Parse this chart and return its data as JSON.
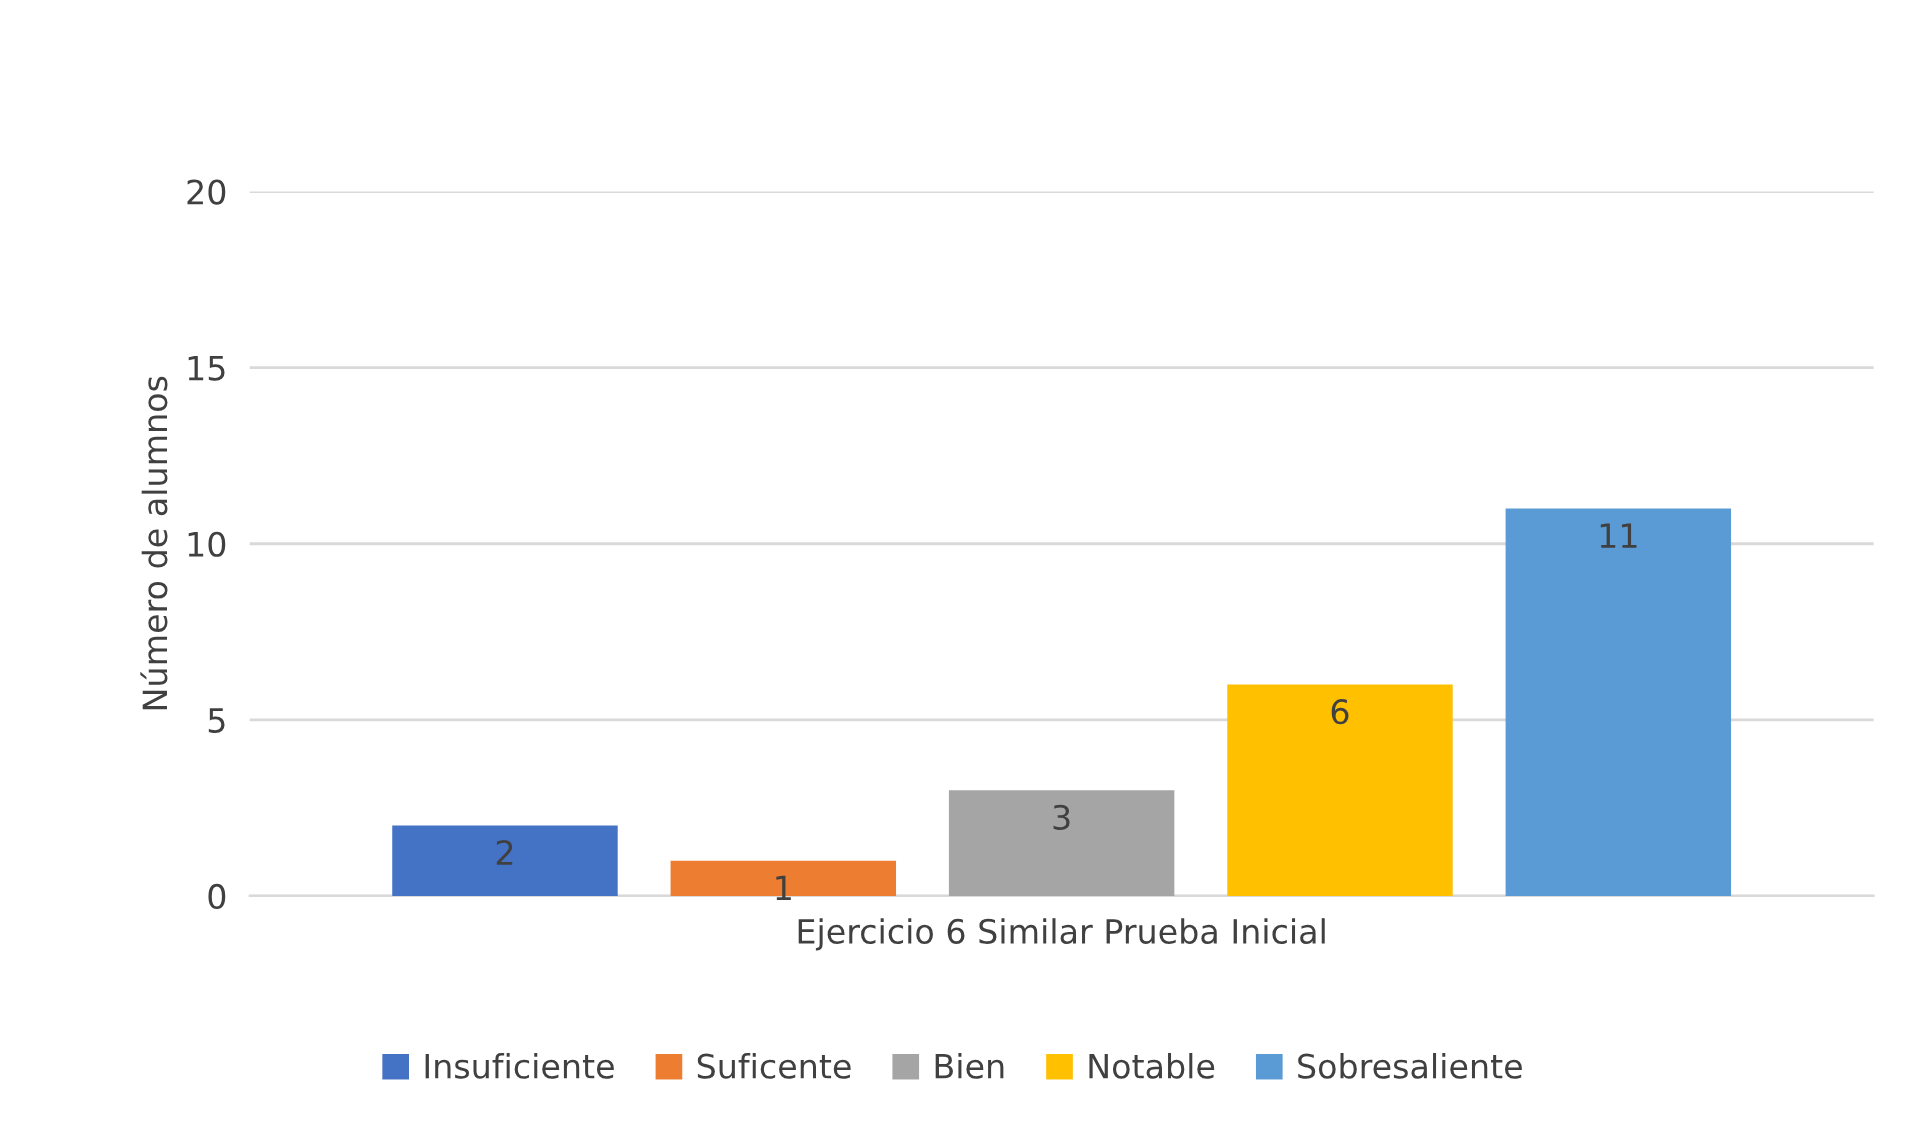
{
  "chart_data": {
    "type": "bar",
    "categories": [
      "Ejercicio 6 Similar Prueba Inicial"
    ],
    "ylabel": "Número de alumnos",
    "series": [
      {
        "name": "Insuficiente",
        "color": "#4472c4",
        "values": [
          2
        ]
      },
      {
        "name": "Suficente",
        "color": "#ed7d31",
        "values": [
          1
        ]
      },
      {
        "name": "Bien",
        "color": "#a5a5a5",
        "values": [
          3
        ]
      },
      {
        "name": "Notable",
        "color": "#ffc000",
        "values": [
          6
        ]
      },
      {
        "name": "Sobresaliente",
        "color": "#5b9bd5",
        "values": [
          11
        ]
      }
    ],
    "ylim": [
      0,
      20
    ],
    "yticks": [
      0,
      5,
      10,
      15,
      20
    ],
    "grid": "y",
    "legend": "bottom",
    "data_labels": true
  }
}
